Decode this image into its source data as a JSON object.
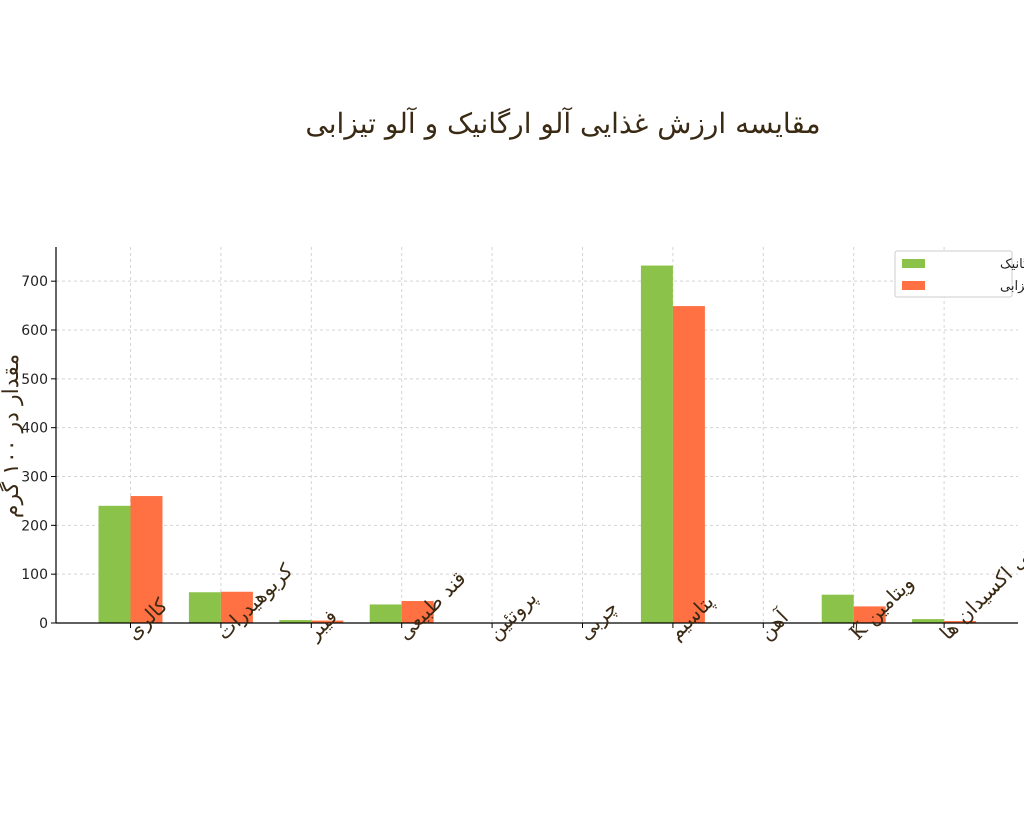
{
  "chart_data": {
    "type": "bar",
    "title": "مقایسه ارزش غذایی آلو ارگانیک و آلو تیزابی",
    "xlabel": "",
    "ylabel": "مقدار در ۱۰۰ گرم",
    "categories": [
      "کالری",
      "کربوهیدرات",
      "فیبر",
      "قند طبیعی",
      "پروتئین",
      "چربی",
      "پتاسیم",
      "آهن",
      "ویتامین K",
      "آنتی اکسیدان ها"
    ],
    "series": [
      {
        "name": "آلو ارگانیک",
        "color": "#8bc34a",
        "values": [
          240,
          63,
          6,
          38,
          1,
          0.5,
          732,
          0.3,
          58,
          8
        ]
      },
      {
        "name": "آلو تیزابی",
        "color": "#ff7043",
        "values": [
          260,
          64,
          5,
          45,
          1,
          0.5,
          649,
          0.2,
          34,
          4
        ]
      }
    ],
    "ylim": [
      0,
      770
    ],
    "yticks": [
      0,
      100,
      200,
      300,
      400,
      500,
      600,
      700
    ],
    "grid": true,
    "legend_position": "top-right"
  }
}
